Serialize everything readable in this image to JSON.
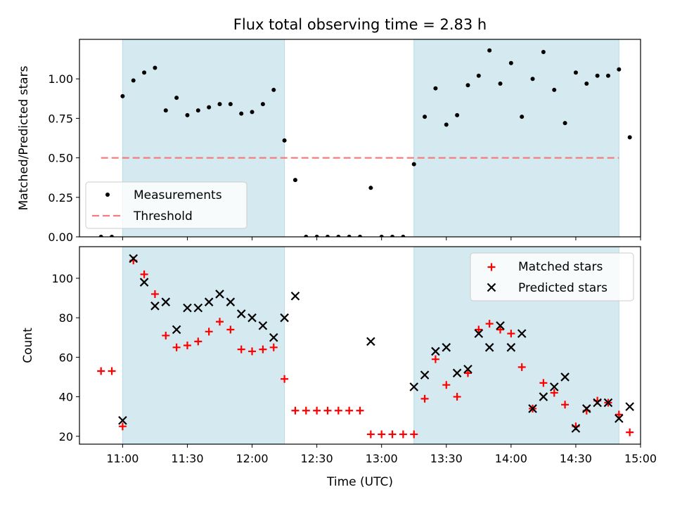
{
  "title": "Flux total observing time = 2.83 h",
  "colors": {
    "shade": "#d4eaf0",
    "shade_edge": "#b7dbe6",
    "measure": "#000000",
    "threshold": "#f47c7c",
    "matched": "#ff0000",
    "predicted": "#000000"
  },
  "chart_data": [
    {
      "type": "scatter",
      "panel": "top",
      "xlabel": "",
      "ylabel": "Matched/Predicted stars",
      "xlim": [
        "10:40",
        "15:00"
      ],
      "ylim": [
        0,
        1.25
      ],
      "yticks": [
        "0.00",
        "0.25",
        "0.50",
        "0.75",
        "1.00"
      ],
      "shaded_spans": [
        [
          "11:00",
          "12:15"
        ],
        [
          "13:15",
          "14:50"
        ]
      ],
      "legend": {
        "position": "lower-left",
        "entries": [
          "Measurements",
          "Threshold"
        ]
      },
      "threshold": {
        "name": "Threshold",
        "y": 0.5,
        "x_range": [
          "10:50",
          "14:50"
        ]
      },
      "series": [
        {
          "name": "Measurements",
          "points": [
            [
              "10:50",
              0.0
            ],
            [
              "10:55",
              0.0
            ],
            [
              "11:00",
              0.89
            ],
            [
              "11:05",
              0.99
            ],
            [
              "11:10",
              1.04
            ],
            [
              "11:15",
              1.07
            ],
            [
              "11:20",
              0.8
            ],
            [
              "11:25",
              0.88
            ],
            [
              "11:30",
              0.77
            ],
            [
              "11:35",
              0.8
            ],
            [
              "11:40",
              0.82
            ],
            [
              "11:45",
              0.84
            ],
            [
              "11:50",
              0.84
            ],
            [
              "11:55",
              0.78
            ],
            [
              "12:00",
              0.79
            ],
            [
              "12:05",
              0.84
            ],
            [
              "12:10",
              0.93
            ],
            [
              "12:15",
              0.61
            ],
            [
              "12:20",
              0.36
            ],
            [
              "12:25",
              0.0
            ],
            [
              "12:30",
              0.0
            ],
            [
              "12:35",
              0.0
            ],
            [
              "12:40",
              0.0
            ],
            [
              "12:45",
              0.0
            ],
            [
              "12:50",
              0.0
            ],
            [
              "12:55",
              0.31
            ],
            [
              "13:00",
              0.0
            ],
            [
              "13:05",
              0.0
            ],
            [
              "13:10",
              0.0
            ],
            [
              "13:15",
              0.46
            ],
            [
              "13:20",
              0.76
            ],
            [
              "13:25",
              0.94
            ],
            [
              "13:30",
              0.71
            ],
            [
              "13:35",
              0.77
            ],
            [
              "13:40",
              0.96
            ],
            [
              "13:45",
              1.02
            ],
            [
              "13:50",
              1.18
            ],
            [
              "13:55",
              0.97
            ],
            [
              "14:00",
              1.1
            ],
            [
              "14:05",
              0.76
            ],
            [
              "14:10",
              1.0
            ],
            [
              "14:15",
              1.17
            ],
            [
              "14:20",
              0.93
            ],
            [
              "14:25",
              0.72
            ],
            [
              "14:30",
              1.04
            ],
            [
              "14:35",
              0.97
            ],
            [
              "14:40",
              1.02
            ],
            [
              "14:45",
              1.02
            ],
            [
              "14:50",
              1.06
            ],
            [
              "14:55",
              0.63
            ]
          ]
        }
      ]
    },
    {
      "type": "scatter",
      "panel": "bottom",
      "xlabel": "Time (UTC)",
      "ylabel": "Count",
      "xlim": [
        "10:40",
        "15:00"
      ],
      "ylim": [
        16,
        116
      ],
      "xticks": [
        "11:00",
        "11:30",
        "12:00",
        "12:30",
        "13:00",
        "13:30",
        "14:00",
        "14:30",
        "15:00"
      ],
      "yticks": [
        "20",
        "40",
        "60",
        "80",
        "100"
      ],
      "shaded_spans": [
        [
          "11:00",
          "12:15"
        ],
        [
          "13:15",
          "14:50"
        ]
      ],
      "legend": {
        "position": "upper-right",
        "entries": [
          "Matched stars",
          "Predicted stars"
        ]
      },
      "series": [
        {
          "name": "Matched stars",
          "points": [
            [
              "10:50",
              53
            ],
            [
              "10:55",
              53
            ],
            [
              "11:00",
              25
            ],
            [
              "11:05",
              109
            ],
            [
              "11:10",
              102
            ],
            [
              "11:15",
              92
            ],
            [
              "11:20",
              71
            ],
            [
              "11:25",
              65
            ],
            [
              "11:30",
              66
            ],
            [
              "11:35",
              68
            ],
            [
              "11:40",
              73
            ],
            [
              "11:45",
              78
            ],
            [
              "11:50",
              74
            ],
            [
              "11:55",
              64
            ],
            [
              "12:00",
              63
            ],
            [
              "12:05",
              64
            ],
            [
              "12:10",
              65
            ],
            [
              "12:15",
              49
            ],
            [
              "12:20",
              33
            ],
            [
              "12:25",
              33
            ],
            [
              "12:30",
              33
            ],
            [
              "12:35",
              33
            ],
            [
              "12:40",
              33
            ],
            [
              "12:45",
              33
            ],
            [
              "12:50",
              33
            ],
            [
              "12:55",
              21
            ],
            [
              "13:00",
              21
            ],
            [
              "13:05",
              21
            ],
            [
              "13:10",
              21
            ],
            [
              "13:15",
              21
            ],
            [
              "13:20",
              39
            ],
            [
              "13:25",
              59
            ],
            [
              "13:30",
              46
            ],
            [
              "13:35",
              40
            ],
            [
              "13:40",
              52
            ],
            [
              "13:45",
              74
            ],
            [
              "13:50",
              77
            ],
            [
              "13:55",
              74
            ],
            [
              "14:00",
              72
            ],
            [
              "14:05",
              55
            ],
            [
              "14:10",
              34
            ],
            [
              "14:15",
              47
            ],
            [
              "14:20",
              42
            ],
            [
              "14:25",
              36
            ],
            [
              "14:30",
              25
            ],
            [
              "14:35",
              33
            ],
            [
              "14:40",
              38
            ],
            [
              "14:45",
              37
            ],
            [
              "14:50",
              31
            ],
            [
              "14:55",
              22
            ]
          ]
        },
        {
          "name": "Predicted stars",
          "points": [
            [
              "11:00",
              28
            ],
            [
              "11:05",
              110
            ],
            [
              "11:10",
              98
            ],
            [
              "11:15",
              86
            ],
            [
              "11:20",
              88
            ],
            [
              "11:25",
              74
            ],
            [
              "11:30",
              85
            ],
            [
              "11:35",
              85
            ],
            [
              "11:40",
              88
            ],
            [
              "11:45",
              92
            ],
            [
              "11:50",
              88
            ],
            [
              "11:55",
              82
            ],
            [
              "12:00",
              80
            ],
            [
              "12:05",
              76
            ],
            [
              "12:10",
              70
            ],
            [
              "12:15",
              80
            ],
            [
              "12:20",
              91
            ],
            [
              "12:55",
              68
            ],
            [
              "13:15",
              45
            ],
            [
              "13:20",
              51
            ],
            [
              "13:25",
              63
            ],
            [
              "13:30",
              65
            ],
            [
              "13:35",
              52
            ],
            [
              "13:40",
              54
            ],
            [
              "13:45",
              72
            ],
            [
              "13:50",
              65
            ],
            [
              "13:55",
              76
            ],
            [
              "14:00",
              65
            ],
            [
              "14:05",
              72
            ],
            [
              "14:10",
              34
            ],
            [
              "14:15",
              40
            ],
            [
              "14:20",
              45
            ],
            [
              "14:25",
              50
            ],
            [
              "14:30",
              24
            ],
            [
              "14:35",
              34
            ],
            [
              "14:40",
              37
            ],
            [
              "14:45",
              37
            ],
            [
              "14:50",
              29
            ],
            [
              "14:55",
              35
            ]
          ]
        }
      ]
    }
  ]
}
